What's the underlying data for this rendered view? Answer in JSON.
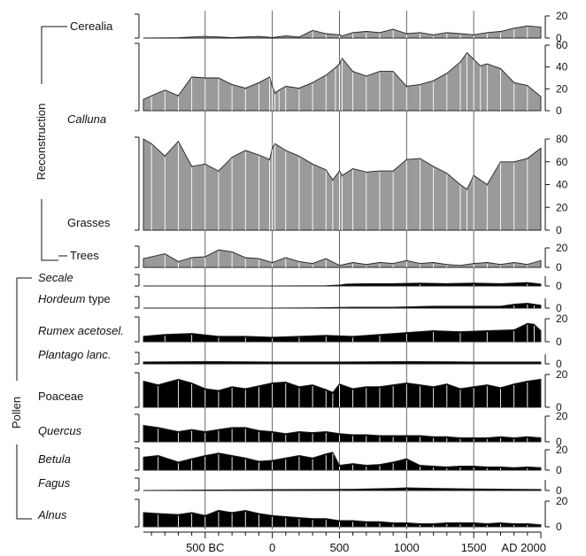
{
  "groups": [
    {
      "label": "Reconstruction",
      "rows": [
        "cerealia",
        "calluna",
        "grasses",
        "trees"
      ]
    },
    {
      "label": "Pollen",
      "rows": [
        "secale",
        "hordeum",
        "rumex",
        "plantago",
        "poaceae",
        "quercus",
        "betula",
        "fagus",
        "alnus"
      ]
    }
  ],
  "x_axis": {
    "labels": [
      {
        "value": -500,
        "text": "500 BC"
      },
      {
        "value": 0,
        "text": "0"
      },
      {
        "value": 500,
        "text": "500"
      },
      {
        "value": 1000,
        "text": "1000"
      },
      {
        "value": 1500,
        "text": "1500"
      },
      {
        "value": 2000,
        "text": "AD 2000"
      }
    ],
    "minor_ticks": [
      -900,
      -800,
      -700,
      -600,
      -500,
      -400,
      -300,
      -200,
      -100,
      0,
      100,
      200,
      300,
      400,
      500,
      600,
      700,
      800,
      900,
      1000,
      1100,
      1200,
      1300,
      1400,
      1500,
      1600,
      1700,
      1800,
      1900,
      2000
    ],
    "reference_lines": [
      -500,
      0,
      500,
      1000,
      1500
    ]
  },
  "colors": {
    "reconstruction": "#9a9a9a",
    "pollen": "#000000",
    "outline": "#222222"
  },
  "chart_data": [
    {
      "id": "cerealia",
      "type": "area",
      "name": "Cerealia",
      "italic": false,
      "group": "Reconstruction",
      "ylim": [
        0,
        20
      ],
      "yticks": [
        "20",
        "0"
      ],
      "x": [
        -960,
        -700,
        -500,
        -300,
        -100,
        0,
        100,
        200,
        300,
        400,
        500,
        520,
        600,
        700,
        800,
        900,
        1000,
        1100,
        1200,
        1300,
        1400,
        1500,
        1600,
        1700,
        1800,
        1900,
        2000
      ],
      "y": [
        0,
        0.3,
        1.5,
        0.5,
        1.5,
        0.5,
        2,
        1,
        7,
        4,
        3,
        2,
        5,
        6,
        5,
        8,
        4,
        5,
        3,
        5,
        4,
        3,
        5,
        6,
        9,
        11,
        10
      ]
    },
    {
      "id": "calluna",
      "type": "area",
      "name": "Calluna",
      "italic": true,
      "group": "Reconstruction",
      "ylim": [
        0,
        70
      ],
      "yticks": [
        "60",
        "40",
        "20",
        "0"
      ],
      "x": [
        -960,
        -900,
        -800,
        -700,
        -600,
        -500,
        -400,
        -300,
        -200,
        -100,
        -20,
        0,
        20,
        50,
        100,
        200,
        300,
        400,
        470,
        500,
        520,
        600,
        700,
        800,
        900,
        1000,
        1100,
        1200,
        1300,
        1400,
        1450,
        1500,
        1550,
        1600,
        1700,
        1800,
        1900,
        2000
      ],
      "y": [
        12,
        16,
        22,
        16,
        36,
        35,
        35,
        28,
        24,
        30,
        36,
        26,
        19,
        22,
        26,
        24,
        30,
        38,
        46,
        50,
        56,
        42,
        37,
        42,
        42,
        26,
        28,
        32,
        40,
        52,
        62,
        55,
        48,
        50,
        45,
        30,
        27,
        15
      ]
    },
    {
      "id": "grasses",
      "type": "area",
      "name": "Grasses",
      "italic": false,
      "group": "Reconstruction",
      "ylim": [
        0,
        80
      ],
      "yticks": [
        "80",
        "60",
        "40",
        "20",
        "0"
      ],
      "x": [
        -960,
        -900,
        -800,
        -700,
        -600,
        -500,
        -400,
        -300,
        -200,
        -100,
        -20,
        0,
        20,
        100,
        200,
        300,
        400,
        450,
        500,
        520,
        600,
        700,
        800,
        900,
        1000,
        1100,
        1200,
        1300,
        1400,
        1450,
        1500,
        1600,
        1700,
        1800,
        1900,
        2000
      ],
      "y": [
        80,
        76,
        65,
        78,
        56,
        58,
        52,
        64,
        70,
        66,
        62,
        72,
        76,
        70,
        65,
        58,
        53,
        44,
        52,
        48,
        54,
        51,
        52,
        52,
        62,
        63,
        56,
        50,
        40,
        36,
        48,
        40,
        60,
        60,
        63,
        72
      ]
    },
    {
      "id": "trees",
      "type": "area",
      "name": "Trees",
      "italic": false,
      "group": "Reconstruction",
      "ylim": [
        0,
        20
      ],
      "yticks": [
        "20",
        "0"
      ],
      "x": [
        -960,
        -800,
        -700,
        -600,
        -500,
        -400,
        -300,
        -200,
        -100,
        0,
        100,
        200,
        300,
        400,
        500,
        600,
        700,
        800,
        900,
        1000,
        1100,
        1200,
        1300,
        1400,
        1500,
        1600,
        1700,
        1800,
        1900,
        2000
      ],
      "y": [
        9,
        14,
        6,
        10,
        11,
        18,
        16,
        10,
        9,
        5,
        10,
        6,
        4,
        9,
        2,
        5,
        3,
        5,
        4,
        7,
        4,
        5,
        3,
        2,
        4,
        5,
        3,
        5,
        3,
        7
      ]
    },
    {
      "id": "secale",
      "type": "area",
      "name": "Secale",
      "italic": true,
      "group": "Pollen",
      "ylim": [
        0,
        10
      ],
      "yticks": [
        "0"
      ],
      "x": [
        -960,
        0,
        400,
        500,
        550,
        700,
        900,
        1100,
        1300,
        1500,
        1700,
        1900,
        2000
      ],
      "y": [
        0,
        0,
        0.3,
        1,
        2,
        2.5,
        2.5,
        3,
        2.5,
        3,
        2.5,
        3.5,
        2
      ]
    },
    {
      "id": "hordeum",
      "type": "area",
      "name": "Hordeum",
      "suffix": " type",
      "italic": true,
      "group": "Pollen",
      "ylim": [
        0,
        10
      ],
      "yticks": [
        "0"
      ],
      "x": [
        -960,
        0,
        300,
        600,
        900,
        1200,
        1500,
        1700,
        1800,
        1900,
        1950,
        2000
      ],
      "y": [
        0,
        0,
        0.3,
        1,
        1,
        2,
        2,
        2,
        4,
        5,
        4,
        3
      ]
    },
    {
      "id": "rumex",
      "type": "area",
      "name": "Rumex acetosel.",
      "italic": true,
      "group": "Pollen",
      "ylim": [
        0,
        25
      ],
      "yticks": [
        "20",
        "0"
      ],
      "x": [
        -960,
        -800,
        -600,
        -400,
        -200,
        0,
        200,
        400,
        600,
        800,
        1000,
        1200,
        1400,
        1600,
        1800,
        1900,
        1950,
        2000
      ],
      "y": [
        6,
        8,
        9,
        6,
        6,
        5,
        6,
        7,
        6,
        8,
        10,
        12,
        11,
        12,
        13,
        20,
        19,
        12
      ]
    },
    {
      "id": "plantago",
      "type": "area",
      "name": "Plantago lanc.",
      "italic": true,
      "group": "Pollen",
      "ylim": [
        0,
        10
      ],
      "yticks": [
        "0"
      ],
      "x": [
        -960,
        -500,
        0,
        500,
        1000,
        1500,
        2000
      ],
      "y": [
        2,
        2.5,
        2,
        2,
        2.5,
        2,
        2
      ]
    },
    {
      "id": "poaceae",
      "type": "area",
      "name": "Poaceae",
      "italic": false,
      "group": "Pollen",
      "ylim": [
        0,
        35
      ],
      "yticks": [
        "20",
        "0"
      ],
      "x": [
        -960,
        -850,
        -700,
        -600,
        -500,
        -400,
        -300,
        -200,
        -100,
        0,
        100,
        200,
        300,
        400,
        450,
        500,
        600,
        700,
        800,
        900,
        1000,
        1100,
        1200,
        1300,
        1400,
        1500,
        1600,
        1700,
        1800,
        1900,
        2000
      ],
      "y": [
        28,
        24,
        30,
        26,
        20,
        18,
        22,
        20,
        23,
        26,
        27,
        22,
        24,
        19,
        16,
        25,
        20,
        22,
        22,
        24,
        26,
        24,
        22,
        25,
        20,
        22,
        24,
        21,
        25,
        28,
        30
      ]
    },
    {
      "id": "quercus",
      "type": "area",
      "name": "Quercus",
      "italic": true,
      "group": "Pollen",
      "ylim": [
        0,
        25
      ],
      "yticks": [
        "20",
        "0"
      ],
      "x": [
        -960,
        -850,
        -700,
        -600,
        -500,
        -400,
        -300,
        -200,
        -100,
        0,
        100,
        200,
        300,
        400,
        500,
        600,
        700,
        800,
        900,
        1000,
        1100,
        1200,
        1300,
        1400,
        1500,
        1600,
        1700,
        1800,
        1900,
        2000
      ],
      "y": [
        16,
        14,
        10,
        12,
        10,
        12,
        14,
        14,
        11,
        10,
        8,
        10,
        9,
        10,
        8,
        7,
        7,
        6,
        6,
        6,
        6,
        5,
        5,
        4,
        4,
        4,
        5,
        4,
        5,
        4
      ]
    },
    {
      "id": "betula",
      "type": "area",
      "name": "Betula",
      "italic": true,
      "group": "Pollen",
      "ylim": [
        0,
        25
      ],
      "yticks": [
        "20",
        "0"
      ],
      "x": [
        -960,
        -850,
        -700,
        -600,
        -500,
        -400,
        -300,
        -200,
        -100,
        0,
        100,
        200,
        300,
        400,
        450,
        500,
        600,
        700,
        800,
        900,
        1000,
        1100,
        1200,
        1300,
        1400,
        1500,
        1600,
        1700,
        1800,
        1900,
        2000
      ],
      "y": [
        16,
        18,
        10,
        14,
        18,
        21,
        18,
        15,
        11,
        12,
        15,
        18,
        15,
        20,
        22,
        6,
        8,
        6,
        7,
        10,
        14,
        6,
        5,
        4,
        5,
        5,
        4,
        4,
        3,
        4,
        3
      ]
    },
    {
      "id": "fagus",
      "type": "area",
      "name": "Fagus",
      "italic": true,
      "group": "Pollen",
      "ylim": [
        0,
        10
      ],
      "yticks": [
        "0"
      ],
      "x": [
        -960,
        -500,
        0,
        300,
        600,
        900,
        1000,
        1200,
        1500,
        1800,
        2000
      ],
      "y": [
        0,
        0.5,
        0.8,
        1,
        1.2,
        2,
        2.5,
        2,
        1.5,
        1.2,
        1
      ]
    },
    {
      "id": "alnus",
      "type": "area",
      "name": "Alnus",
      "italic": true,
      "group": "Pollen",
      "ylim": [
        0,
        25
      ],
      "yticks": [
        "20",
        "0"
      ],
      "x": [
        -960,
        -850,
        -700,
        -600,
        -500,
        -400,
        -300,
        -200,
        -100,
        0,
        100,
        200,
        300,
        400,
        500,
        600,
        700,
        800,
        900,
        1000,
        1100,
        1200,
        1300,
        1400,
        1500,
        1600,
        1700,
        1800,
        1900,
        2000
      ],
      "y": [
        14,
        13,
        12,
        14,
        11,
        16,
        14,
        16,
        13,
        11,
        10,
        9,
        8,
        8,
        6,
        6,
        5,
        5,
        4,
        4,
        3,
        3,
        4,
        4,
        4,
        3,
        4,
        3,
        3,
        2
      ]
    }
  ]
}
